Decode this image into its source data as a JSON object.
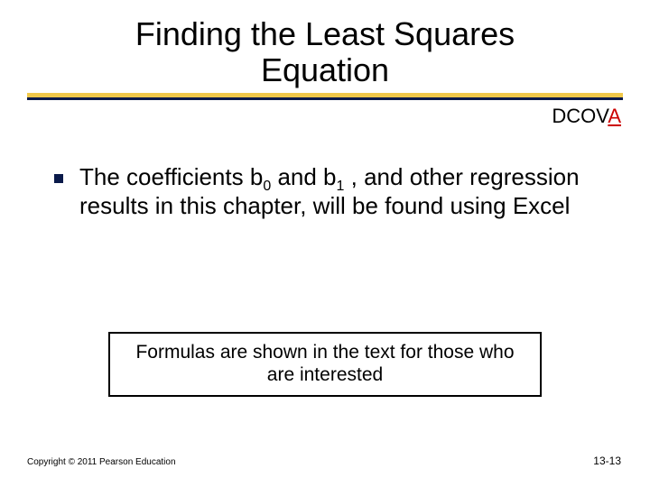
{
  "title": "Finding the Least Squares Equation",
  "dcova": {
    "prefix": "DCOV",
    "suffix": "A"
  },
  "bullet": {
    "pre_b0": "The coefficients  b",
    "sub0": "0",
    "mid": "  and  b",
    "sub1": "1",
    "post": " , and other regression results in this chapter, will be found using Excel"
  },
  "note": "Formulas are shown in the text for those who are interested",
  "footer": {
    "copyright": "Copyright © 2011 Pearson Education",
    "page": "13-13"
  },
  "colors": {
    "accent_yellow": "#f0c84a",
    "accent_navy": "#0a1a4a",
    "highlight_red": "#cc0000",
    "text": "#000000",
    "background": "#ffffff"
  }
}
